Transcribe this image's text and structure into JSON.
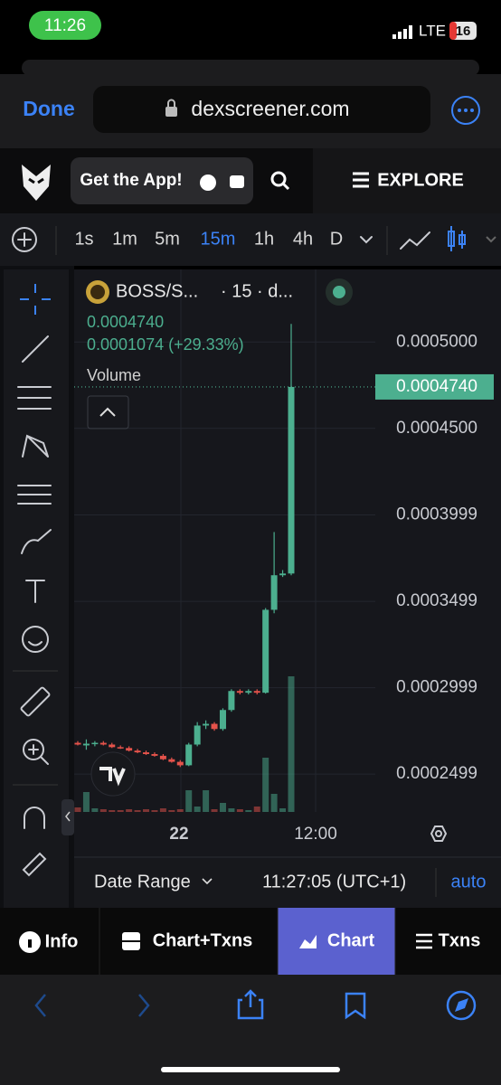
{
  "status_bar": {
    "time": "11:26",
    "network": "LTE",
    "battery": "16"
  },
  "browser": {
    "done": "Done",
    "url": "dexscreener.com"
  },
  "site_header": {
    "get_app": "Get the App!",
    "explore": "EXPLORE"
  },
  "toolbar": {
    "intervals": [
      "1s",
      "1m",
      "5m",
      "15m",
      "1h",
      "4h",
      "D"
    ],
    "active": 3
  },
  "chart_header": {
    "symbol": "BOSS/S...",
    "interval": "· 15 · d...",
    "price": "0.0004740",
    "change": "0.0001074 (+29.33%)",
    "volume": "Volume"
  },
  "chart_data": {
    "type": "candlestick",
    "up_color": "#4caf8f",
    "down_color": "#e5534b",
    "ylim": [
      0.000228,
      0.000542
    ],
    "yticks": [
      {
        "value": 0.0005,
        "label": "0.0005000"
      },
      {
        "value": 0.00045,
        "label": "0.0004500"
      },
      0.0003999,
      0.0003499,
      0.0002999,
      0.0002499
    ],
    "last_price": {
      "value": 0.000474,
      "label": "0.0004740"
    },
    "ohlc": [
      [
        0.000268,
        0.000269,
        0.0002665,
        0.000267
      ],
      [
        0.0002665,
        0.00027,
        0.000264,
        0.0002675
      ],
      [
        0.0002675,
        0.000269,
        0.000266,
        0.000268
      ],
      [
        0.000268,
        0.000269,
        0.0002665,
        0.000267
      ],
      [
        0.000267,
        0.000268,
        0.000265,
        0.0002655
      ],
      [
        0.0002655,
        0.0002665,
        0.0002645,
        0.000265
      ],
      [
        0.000265,
        0.000266,
        0.000263,
        0.0002635
      ],
      [
        0.0002635,
        0.0002645,
        0.000262,
        0.0002625
      ],
      [
        0.0002625,
        0.0002635,
        0.000261,
        0.0002615
      ],
      [
        0.0002615,
        0.0002625,
        0.00026,
        0.0002605
      ],
      [
        0.0002605,
        0.0002615,
        0.000258,
        0.0002585
      ],
      [
        0.0002585,
        0.0002595,
        0.0002565,
        0.000257
      ],
      [
        0.000257,
        0.000258,
        0.000254,
        0.000255
      ],
      [
        0.000255,
        0.000268,
        0.0002545,
        0.000267
      ],
      [
        0.000267,
        0.00028,
        0.000266,
        0.000278
      ],
      [
        0.000278,
        0.000281,
        0.000276,
        0.000279
      ],
      [
        0.000279,
        0.00028,
        0.000275,
        0.000276
      ],
      [
        0.000276,
        0.000288,
        0.000275,
        0.000287
      ],
      [
        0.000287,
        0.000299,
        0.000286,
        0.000298
      ],
      [
        0.000298,
        0.000299,
        0.000296,
        0.000297
      ],
      [
        0.000297,
        0.000299,
        0.000296,
        0.000298
      ],
      [
        0.000298,
        0.000299,
        0.000296,
        0.000297
      ],
      [
        0.000297,
        0.000346,
        0.0002965,
        0.000345
      ],
      [
        0.000345,
        0.00039,
        0.000343,
        0.000365
      ],
      [
        0.000365,
        0.000368,
        0.000364,
        0.000366
      ],
      [
        0.000366,
        0.0005105,
        0.000365,
        0.000474
      ]
    ],
    "volume": [
      5,
      22,
      4,
      3,
      2,
      2,
      3,
      2,
      3,
      2,
      4,
      2,
      3,
      24,
      6,
      24,
      3,
      10,
      4,
      3,
      2,
      6,
      60,
      20,
      4,
      150
    ],
    "x_labels": [
      "22",
      "12:00"
    ]
  },
  "footer": {
    "date_range": "Date Range",
    "time": "11:27:05 (UTC+1)",
    "auto": "auto"
  },
  "tabs": [
    "Info",
    "Chart+Txns",
    "Chart",
    "Txns"
  ]
}
